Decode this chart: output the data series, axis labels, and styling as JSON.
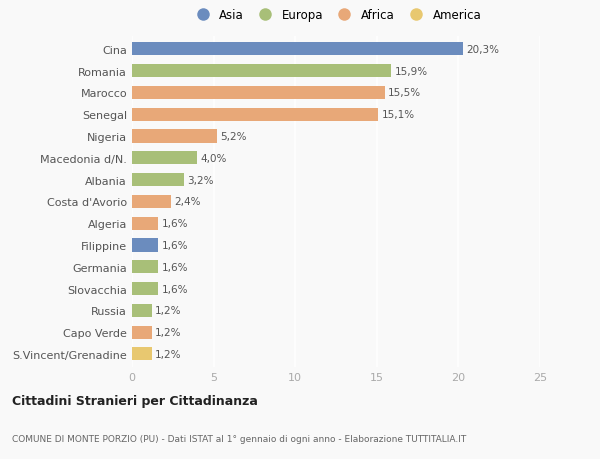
{
  "categories": [
    "Cina",
    "Romania",
    "Marocco",
    "Senegal",
    "Nigeria",
    "Macedonia d/N.",
    "Albania",
    "Costa d'Avorio",
    "Algeria",
    "Filippine",
    "Germania",
    "Slovacchia",
    "Russia",
    "Capo Verde",
    "S.Vincent/Grenadine"
  ],
  "values": [
    20.3,
    15.9,
    15.5,
    15.1,
    5.2,
    4.0,
    3.2,
    2.4,
    1.6,
    1.6,
    1.6,
    1.6,
    1.2,
    1.2,
    1.2
  ],
  "labels": [
    "20,3%",
    "15,9%",
    "15,5%",
    "15,1%",
    "5,2%",
    "4,0%",
    "3,2%",
    "2,4%",
    "1,6%",
    "1,6%",
    "1,6%",
    "1,6%",
    "1,2%",
    "1,2%",
    "1,2%"
  ],
  "colors": [
    "#6b8cbe",
    "#a8bf78",
    "#e8a878",
    "#e8a878",
    "#e8a878",
    "#a8bf78",
    "#a8bf78",
    "#e8a878",
    "#e8a878",
    "#6b8cbe",
    "#a8bf78",
    "#a8bf78",
    "#a8bf78",
    "#e8a878",
    "#e8c870"
  ],
  "legend_labels": [
    "Asia",
    "Europa",
    "Africa",
    "America"
  ],
  "legend_colors": [
    "#6b8cbe",
    "#a8bf78",
    "#e8a878",
    "#e8c870"
  ],
  "xlim": [
    0,
    25
  ],
  "xticks": [
    0,
    5,
    10,
    15,
    20,
    25
  ],
  "title": "Cittadini Stranieri per Cittadinanza",
  "subtitle": "COMUNE DI MONTE PORZIO (PU) - Dati ISTAT al 1° gennaio di ogni anno - Elaborazione TUTTITALIA.IT",
  "background_color": "#f9f9f9",
  "bar_height": 0.6
}
